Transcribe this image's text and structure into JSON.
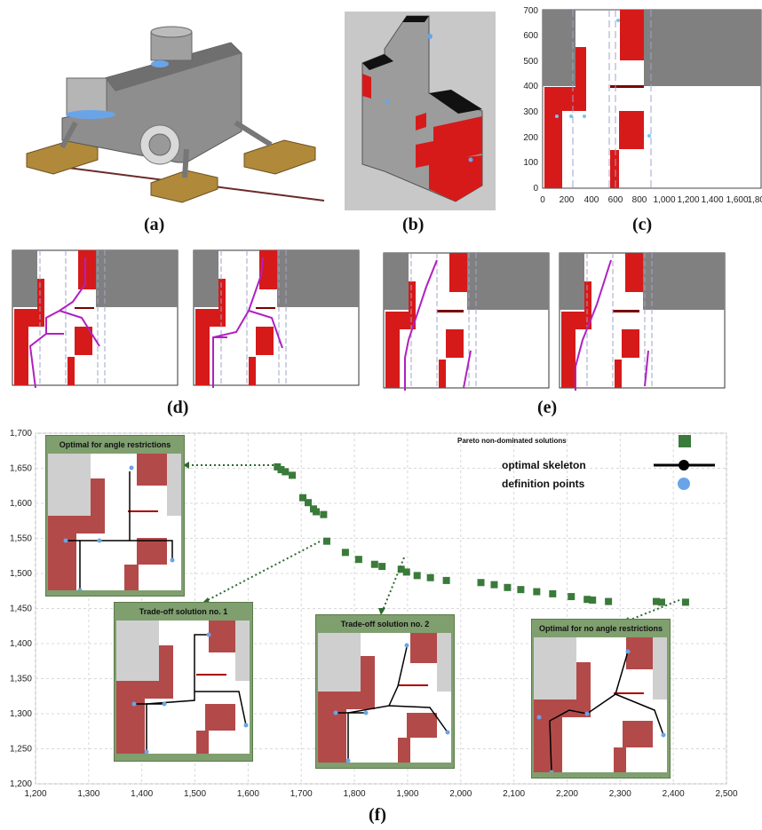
{
  "captions": {
    "a": "(a)",
    "b": "(b)",
    "c": "(c)",
    "d": "(d)",
    "e": "(e)",
    "f": "(f)"
  },
  "panel_c": {
    "x_ticks": [
      "0",
      "200",
      "400",
      "600",
      "800",
      "1,000",
      "1,200",
      "1,400",
      "1,600",
      "1,800"
    ],
    "y_ticks": [
      "0",
      "100",
      "200",
      "300",
      "400",
      "500",
      "600",
      "700"
    ],
    "x_range": [
      0,
      1800
    ],
    "y_range": [
      0,
      700
    ]
  },
  "chart_data": {
    "type": "scatter",
    "x_ticks": [
      "1,200",
      "1,300",
      "1,400",
      "1,500",
      "1,600",
      "1,700",
      "1,800",
      "1,900",
      "2,000",
      "2,100",
      "2,200",
      "2,300",
      "2,400",
      "2,500"
    ],
    "y_ticks": [
      "1,200",
      "1,250",
      "1,300",
      "1,350",
      "1,400",
      "1,450",
      "1,500",
      "1,550",
      "1,600",
      "1,650",
      "1,700"
    ],
    "xlim": [
      1200,
      2500
    ],
    "ylim": [
      1200,
      1700
    ],
    "grid": true,
    "legend_placement": "top-right",
    "series": [
      {
        "name": "Pareto non-dominated solutions",
        "color": "#3a7a3a",
        "x": [
          1655,
          1662,
          1670,
          1683,
          1703,
          1713,
          1723,
          1728,
          1742,
          1748,
          1783,
          1808,
          1838,
          1852,
          1888,
          1898,
          1918,
          1943,
          1973,
          2038,
          2063,
          2088,
          2113,
          2143,
          2173,
          2208,
          2238,
          2248,
          2278,
          2368,
          2378,
          2423
        ],
        "y": [
          1652,
          1648,
          1645,
          1640,
          1608,
          1601,
          1592,
          1588,
          1584,
          1546,
          1530,
          1520,
          1513,
          1510,
          1506,
          1502,
          1497,
          1494,
          1490,
          1487,
          1484,
          1480,
          1477,
          1474,
          1471,
          1467,
          1463,
          1462,
          1460,
          1460,
          1459,
          1459
        ]
      }
    ],
    "legend": {
      "pareto": "Pareto non-dominated solutions",
      "skeleton": "optimal  skeleton",
      "points": "definition points"
    }
  },
  "insets": {
    "angle": "Optimal  for  angle  restrictions",
    "tradeoff1": "Trade-off  solution  no.  1",
    "tradeoff2": "Trade-off  solution  no.  2",
    "noangle": "Optimal  for  no  angle  restrictions"
  },
  "colors": {
    "red": "#d61a1a",
    "gray": "#808080",
    "purple": "#b020c0",
    "green": "#3a7a3a",
    "inset_red": "#b34a4a",
    "inset_gray": "#cfcfcf"
  }
}
